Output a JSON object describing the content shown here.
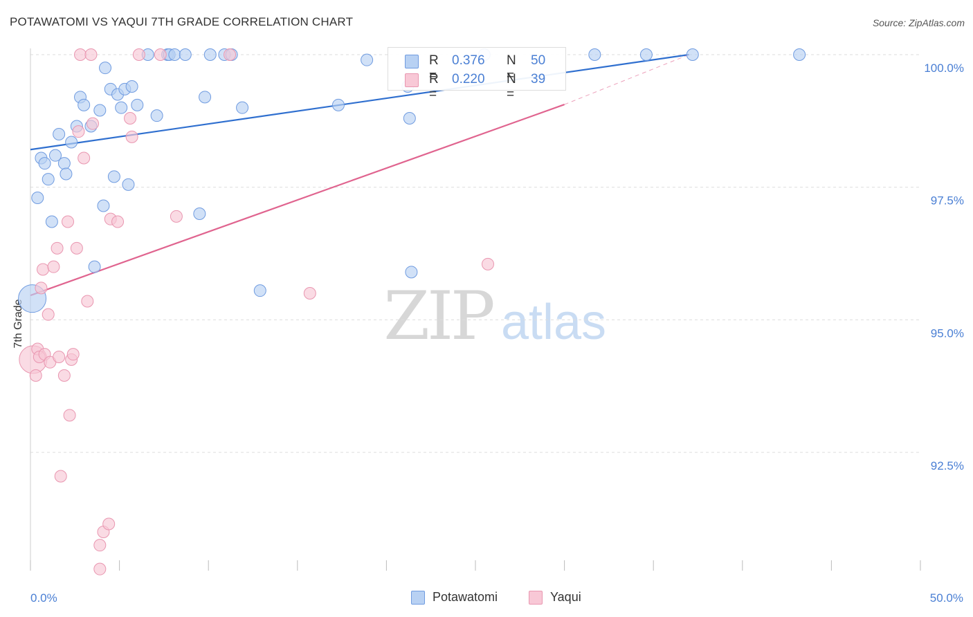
{
  "title": "POTAWATOMI VS YAQUI 7TH GRADE CORRELATION CHART",
  "source": "Source: ZipAtlas.com",
  "watermark": {
    "zip": "ZIP",
    "atlas": "atlas"
  },
  "stats": [
    {
      "r_label": "R =",
      "r_value": "0.376",
      "n_label": "N =",
      "n_value": "50"
    },
    {
      "r_label": "R =",
      "r_value": "0.220",
      "n_label": "N =",
      "n_value": "39"
    }
  ],
  "legend": [
    {
      "name": "Potawatomi"
    },
    {
      "name": "Yaqui"
    }
  ],
  "colors": {
    "potawatomi_fill": "#b8d1f3",
    "potawatomi_stroke": "#6f9be0",
    "potawatomi_line": "#2f6fcf",
    "yaqui_fill": "#f8c8d6",
    "yaqui_stroke": "#e996b0",
    "yaqui_line": "#e0648f",
    "tick_label": "#4a7fd4",
    "grid": "#dddddd"
  },
  "chart_data": {
    "type": "scatter",
    "title": "POTAWATOMI VS YAQUI 7TH GRADE CORRELATION CHART",
    "xlabel": "",
    "ylabel": "7th Grade",
    "xlim": [
      0,
      50
    ],
    "ylim": [
      90.0,
      100.25
    ],
    "x_tick_labels": [
      {
        "value": 0,
        "label": "0.0%"
      },
      {
        "value": 50,
        "label": "50.0%"
      }
    ],
    "x_minor_ticks": [
      0,
      5,
      10,
      15,
      20,
      25,
      30,
      35,
      40,
      45,
      50
    ],
    "y_ticks": [
      {
        "value": 100.0,
        "label": "100.0%"
      },
      {
        "value": 97.5,
        "label": "97.5%"
      },
      {
        "value": 95.0,
        "label": "95.0%"
      },
      {
        "value": 92.5,
        "label": "92.5%"
      }
    ],
    "series": [
      {
        "name": "Potawatomi",
        "r": 0.376,
        "n": 50,
        "trend": {
          "x": [
            0,
            37
          ],
          "y": [
            98.21,
            100.0
          ],
          "extend_to": null
        },
        "points": [
          {
            "x": 0.1,
            "y": 95.4,
            "size": "large"
          },
          {
            "x": 0.4,
            "y": 97.3
          },
          {
            "x": 0.6,
            "y": 98.05
          },
          {
            "x": 0.8,
            "y": 97.95
          },
          {
            "x": 1.0,
            "y": 97.65
          },
          {
            "x": 1.2,
            "y": 96.85
          },
          {
            "x": 1.4,
            "y": 98.1
          },
          {
            "x": 1.6,
            "y": 98.5
          },
          {
            "x": 1.9,
            "y": 97.95
          },
          {
            "x": 2.0,
            "y": 97.75
          },
          {
            "x": 2.3,
            "y": 98.35
          },
          {
            "x": 2.6,
            "y": 98.65
          },
          {
            "x": 2.8,
            "y": 99.2
          },
          {
            "x": 3.0,
            "y": 99.05
          },
          {
            "x": 3.4,
            "y": 98.65
          },
          {
            "x": 3.6,
            "y": 96.0
          },
          {
            "x": 3.9,
            "y": 98.95
          },
          {
            "x": 4.1,
            "y": 97.15
          },
          {
            "x": 4.2,
            "y": 99.75
          },
          {
            "x": 4.5,
            "y": 99.35
          },
          {
            "x": 4.7,
            "y": 97.7
          },
          {
            "x": 4.9,
            "y": 99.25
          },
          {
            "x": 5.1,
            "y": 99.0
          },
          {
            "x": 5.3,
            "y": 99.35
          },
          {
            "x": 5.5,
            "y": 97.55
          },
          {
            "x": 5.7,
            "y": 99.4
          },
          {
            "x": 6.0,
            "y": 99.05
          },
          {
            "x": 6.6,
            "y": 100.0
          },
          {
            "x": 7.1,
            "y": 98.85
          },
          {
            "x": 7.7,
            "y": 100.0
          },
          {
            "x": 7.8,
            "y": 100.0
          },
          {
            "x": 8.1,
            "y": 100.0
          },
          {
            "x": 8.7,
            "y": 100.0
          },
          {
            "x": 9.5,
            "y": 97.0
          },
          {
            "x": 9.8,
            "y": 99.2
          },
          {
            "x": 10.1,
            "y": 100.0
          },
          {
            "x": 10.9,
            "y": 100.0
          },
          {
            "x": 11.3,
            "y": 100.0
          },
          {
            "x": 11.9,
            "y": 99.0
          },
          {
            "x": 12.9,
            "y": 95.55
          },
          {
            "x": 17.3,
            "y": 99.05
          },
          {
            "x": 18.9,
            "y": 99.9
          },
          {
            "x": 21.2,
            "y": 99.4
          },
          {
            "x": 21.3,
            "y": 98.8
          },
          {
            "x": 21.4,
            "y": 95.9
          },
          {
            "x": 25.5,
            "y": 100.0
          },
          {
            "x": 31.7,
            "y": 100.0
          },
          {
            "x": 34.6,
            "y": 100.0
          },
          {
            "x": 37.2,
            "y": 100.0
          },
          {
            "x": 43.2,
            "y": 100.0
          }
        ]
      },
      {
        "name": "Yaqui",
        "r": 0.22,
        "n": 39,
        "trend": {
          "x": [
            0,
            30
          ],
          "y": [
            95.46,
            99.06
          ],
          "extend_to": {
            "x": 37,
            "y": 100.0
          }
        },
        "points": [
          {
            "x": 0.15,
            "y": 94.25,
            "size": "large"
          },
          {
            "x": 0.3,
            "y": 93.95
          },
          {
            "x": 0.4,
            "y": 94.45
          },
          {
            "x": 0.5,
            "y": 94.3
          },
          {
            "x": 0.6,
            "y": 95.6
          },
          {
            "x": 0.7,
            "y": 95.95
          },
          {
            "x": 0.8,
            "y": 94.35
          },
          {
            "x": 1.0,
            "y": 95.1
          },
          {
            "x": 1.1,
            "y": 94.2
          },
          {
            "x": 1.3,
            "y": 96.0
          },
          {
            "x": 1.5,
            "y": 96.35
          },
          {
            "x": 1.6,
            "y": 94.3
          },
          {
            "x": 1.7,
            "y": 92.05
          },
          {
            "x": 1.9,
            "y": 93.95
          },
          {
            "x": 2.1,
            "y": 96.85
          },
          {
            "x": 2.2,
            "y": 93.2
          },
          {
            "x": 2.3,
            "y": 94.25
          },
          {
            "x": 2.4,
            "y": 94.35
          },
          {
            "x": 2.6,
            "y": 96.35
          },
          {
            "x": 2.7,
            "y": 98.55
          },
          {
            "x": 2.8,
            "y": 100.0
          },
          {
            "x": 3.0,
            "y": 98.05
          },
          {
            "x": 3.2,
            "y": 95.35
          },
          {
            "x": 3.5,
            "y": 98.7
          },
          {
            "x": 3.4,
            "y": 100.0
          },
          {
            "x": 3.9,
            "y": 90.75
          },
          {
            "x": 3.9,
            "y": 90.3
          },
          {
            "x": 4.1,
            "y": 91.0
          },
          {
            "x": 4.4,
            "y": 91.15
          },
          {
            "x": 4.5,
            "y": 96.9
          },
          {
            "x": 4.9,
            "y": 96.85
          },
          {
            "x": 5.6,
            "y": 98.8
          },
          {
            "x": 5.7,
            "y": 98.45
          },
          {
            "x": 6.1,
            "y": 100.0
          },
          {
            "x": 7.3,
            "y": 100.0
          },
          {
            "x": 8.2,
            "y": 96.95
          },
          {
            "x": 11.2,
            "y": 100.0
          },
          {
            "x": 15.7,
            "y": 95.5
          },
          {
            "x": 25.7,
            "y": 96.05
          }
        ]
      }
    ]
  }
}
